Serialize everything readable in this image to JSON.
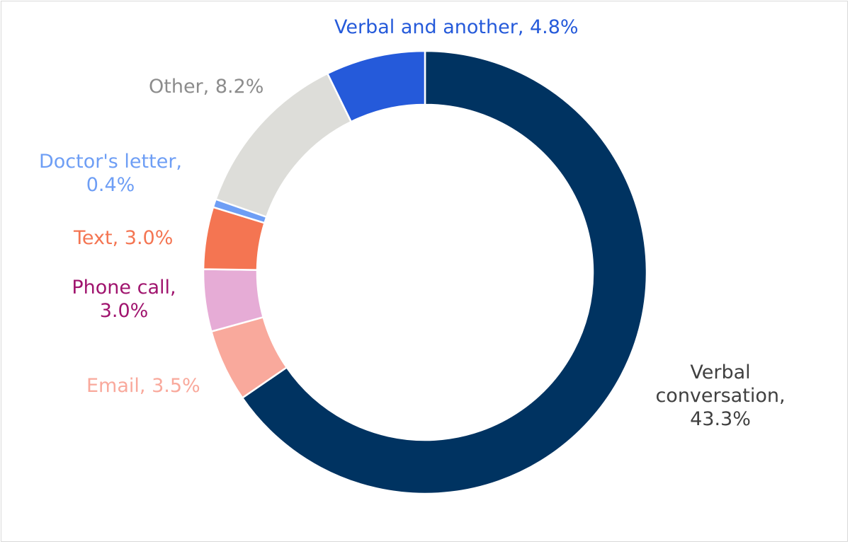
{
  "chart_data": {
    "type": "pie",
    "donut": true,
    "title": "",
    "slices": [
      {
        "label": "Verbal conversation",
        "value": 43.3,
        "display": "Verbal conversation, 43.3%",
        "color": "#003361",
        "label_color": "#404040"
      },
      {
        "label": "Email",
        "value": 3.5,
        "display": "Email, 3.5%",
        "color": "#F9A99C",
        "label_color": "#F9A99C"
      },
      {
        "label": "Phone call",
        "value": 3.0,
        "display": "Phone call, 3.0%",
        "color": "#E6ACD6",
        "label_color": "#A0146E"
      },
      {
        "label": "Text",
        "value": 3.0,
        "display": "Text, 3.0%",
        "color": "#F47552",
        "label_color": "#F47552"
      },
      {
        "label": "Doctor's letter",
        "value": 0.4,
        "display": "Doctor's letter, 0.4%",
        "color": "#6E9EF5",
        "label_color": "#6E9EF5"
      },
      {
        "label": "Other",
        "value": 8.2,
        "display": "Other, 8.2%",
        "color": "#DDDDD9",
        "label_color": "#8C8C8C"
      },
      {
        "label": "Verbal and another",
        "value": 4.8,
        "display": "Verbal and another, 4.8%",
        "color": "#255ADA",
        "label_color": "#255ADA"
      }
    ],
    "start_angle_deg": 0,
    "direction": "clockwise",
    "legend": "none"
  },
  "labels": {
    "verbal_conversation": [
      "Verbal",
      "conversation,",
      "43.3%"
    ],
    "email": "Email, 3.5%",
    "phone_call": [
      "Phone call,",
      "3.0%"
    ],
    "text": "Text, 3.0%",
    "doctors_letter": [
      "Doctor's letter,",
      "0.4%"
    ],
    "other": "Other, 8.2%",
    "verbal_and_another": "Verbal and another, 4.8%"
  }
}
